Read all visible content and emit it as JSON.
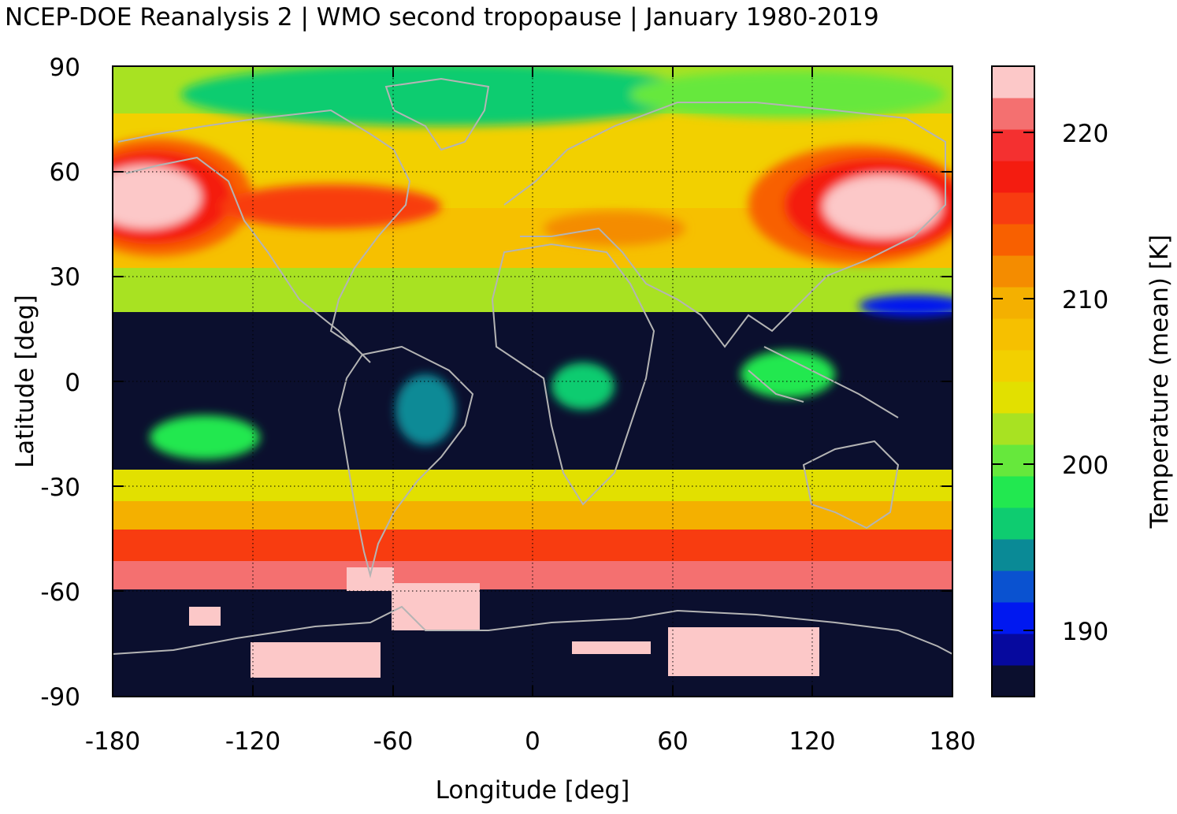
{
  "title": "NCEP-DOE Reanalysis 2 | WMO second tropopause | January 1980-2019",
  "map": {
    "xlabel": "Longitude [deg]",
    "ylabel": "Latitude [deg]",
    "xlim": [
      -180,
      180
    ],
    "ylim": [
      -90,
      90
    ],
    "xticks": [
      "-180",
      "-120",
      "-60",
      "0",
      "60",
      "120",
      "180"
    ],
    "yticks": [
      "90",
      "60",
      "30",
      "0",
      "-30",
      "-60",
      "-90"
    ],
    "grid": true
  },
  "colorbar": {
    "label": "Temperature (mean) [K]",
    "ticks": [
      "220",
      "210",
      "200",
      "190"
    ],
    "levels": [
      "#0b0f2e",
      "#06099e",
      "#0018f0",
      "#0a52d0",
      "#0a8a96",
      "#0ecc70",
      "#22e850",
      "#66e83c",
      "#a8e222",
      "#e2e000",
      "#f2d000",
      "#f6c000",
      "#f4b000",
      "#f48c00",
      "#f86000",
      "#f83c10",
      "#f41c10",
      "#f43030",
      "#f47070",
      "#fcc8c8"
    ]
  },
  "palette": {
    "nodata": "#0b0f2e",
    "coastline": "#b4b4b4",
    "grid": "#000000"
  }
}
